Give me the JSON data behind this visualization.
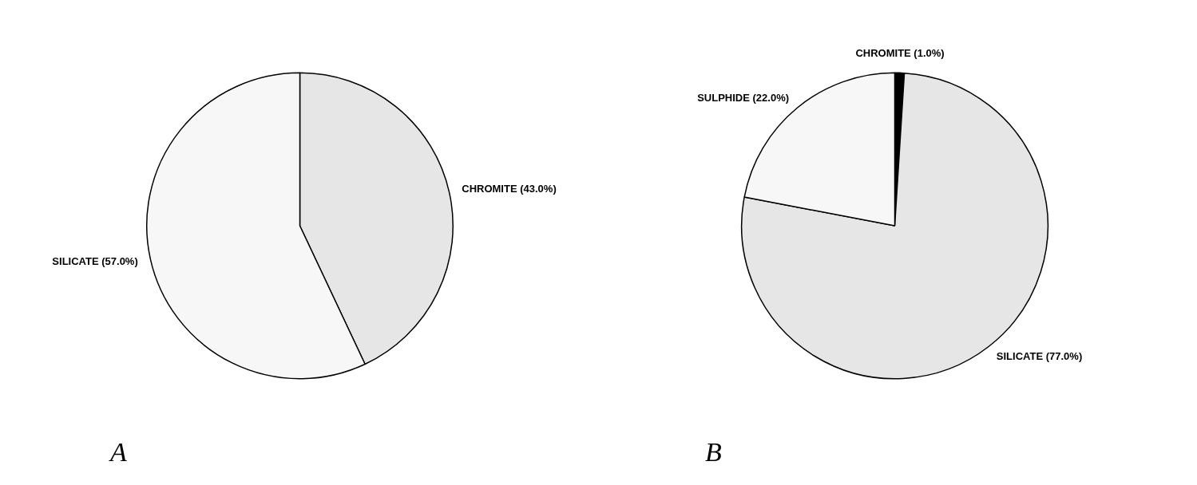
{
  "chart_data": [
    {
      "type": "pie",
      "title": "A",
      "categories": [
        "CHROMITE",
        "SILICATE"
      ],
      "values": [
        43.0,
        57.0
      ],
      "colors": [
        "#e6e6e6",
        "#f7f7f7"
      ],
      "value_labels": [
        "(43.0%)",
        "(57.0%)"
      ]
    },
    {
      "type": "pie",
      "title": "B",
      "categories": [
        "CHROMITE",
        "SILICATE",
        "SULPHIDE"
      ],
      "values": [
        1.0,
        77.0,
        22.0
      ],
      "colors": [
        "#000000",
        "#e6e6e6",
        "#f7f7f7"
      ],
      "value_labels": [
        "(1.0%)",
        "(77.0%)",
        "(22.0%)"
      ]
    }
  ]
}
